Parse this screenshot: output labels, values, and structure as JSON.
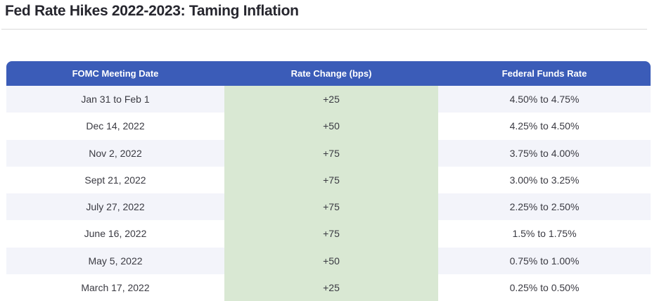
{
  "page": {
    "title": "Fed Rate Hikes 2022-2023: Taming Inflation"
  },
  "chart_data": {
    "type": "table",
    "title": "Fed Rate Hikes 2022-2023: Taming Inflation",
    "columns": [
      "FOMC Meeting Date",
      "Rate Change (bps)",
      "Federal Funds Rate"
    ],
    "rows": [
      {
        "date": "Jan 31 to Feb 1",
        "change": "+25",
        "rate": "4.50% to 4.75%"
      },
      {
        "date": "Dec 14, 2022",
        "change": "+50",
        "rate": "4.25% to 4.50%"
      },
      {
        "date": "Nov 2, 2022",
        "change": "+75",
        "rate": "3.75% to 4.00%"
      },
      {
        "date": "Sept 21, 2022",
        "change": "+75",
        "rate": "3.00% to 3.25%"
      },
      {
        "date": "July 27, 2022",
        "change": "+75",
        "rate": "2.25% to 2.50%"
      },
      {
        "date": "June 16, 2022",
        "change": "+75",
        "rate": "1.5% to 1.75%"
      },
      {
        "date": "May 5, 2022",
        "change": "+50",
        "rate": "0.75% to 1.00%"
      },
      {
        "date": "March 17, 2022",
        "change": "+25",
        "rate": "0.25% to 0.50%"
      }
    ],
    "rate_change_bps": [
      25,
      50,
      75,
      75,
      75,
      75,
      50,
      25
    ],
    "layout": {
      "row_striping": true,
      "highlighted_column": "Rate Change (bps)"
    }
  },
  "colors": {
    "header_bg": "#3B5CB8",
    "header_text": "#FFFFFF",
    "row_alt_bg": "#F3F4FA",
    "row_bg": "#FFFFFF",
    "change_column_bg": "#D9E8D3",
    "title_text": "#26262E",
    "body_text": "#3A3A42",
    "divider": "#D9D9D9"
  }
}
